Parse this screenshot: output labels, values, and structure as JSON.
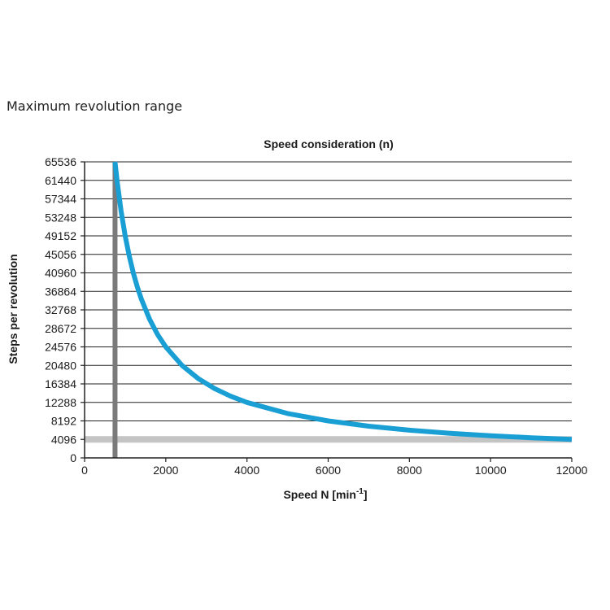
{
  "heading": "Maximum revolution range",
  "colors": {
    "curve": "#1a9fd4",
    "limit_horizontal": "#c4c4c4",
    "limit_vertical": "#7a7a7a",
    "grid": "#222222"
  },
  "chart_data": {
    "type": "line",
    "title": "Speed consideration (n)",
    "xlabel": "Speed N [min",
    "xlabel_sup": "-1",
    "xlabel_close": "]",
    "ylabel": "Steps per revolution",
    "xlim": [
      0,
      12000
    ],
    "ylim": [
      0,
      65536
    ],
    "x_ticks": [
      0,
      2000,
      4000,
      6000,
      8000,
      10000,
      12000
    ],
    "y_ticks": [
      0,
      4096,
      8192,
      12288,
      16384,
      20480,
      24576,
      28672,
      32768,
      36864,
      40960,
      45056,
      49152,
      53248,
      57344,
      61440,
      65536
    ],
    "grid": "horizontal",
    "series": [
      {
        "x": [
          750,
          800,
          900,
          1000,
          1100,
          1200,
          1300,
          1400,
          1600,
          1800,
          2000,
          2400,
          2800,
          3200,
          3600,
          4000,
          5000,
          6000,
          7000,
          8000,
          9000,
          10000,
          11000,
          12000
        ],
        "y": [
          65536,
          61440,
          54600,
          49152,
          44700,
          40960,
          37800,
          35100,
          30700,
          27300,
          24576,
          20480,
          17550,
          15360,
          13650,
          12288,
          9830,
          8192,
          7020,
          6144,
          5460,
          4915,
          4468,
          4096
        ]
      }
    ],
    "limits": [
      {
        "orientation": "horizontal",
        "value": 4096
      },
      {
        "orientation": "vertical",
        "value": 750
      }
    ]
  }
}
